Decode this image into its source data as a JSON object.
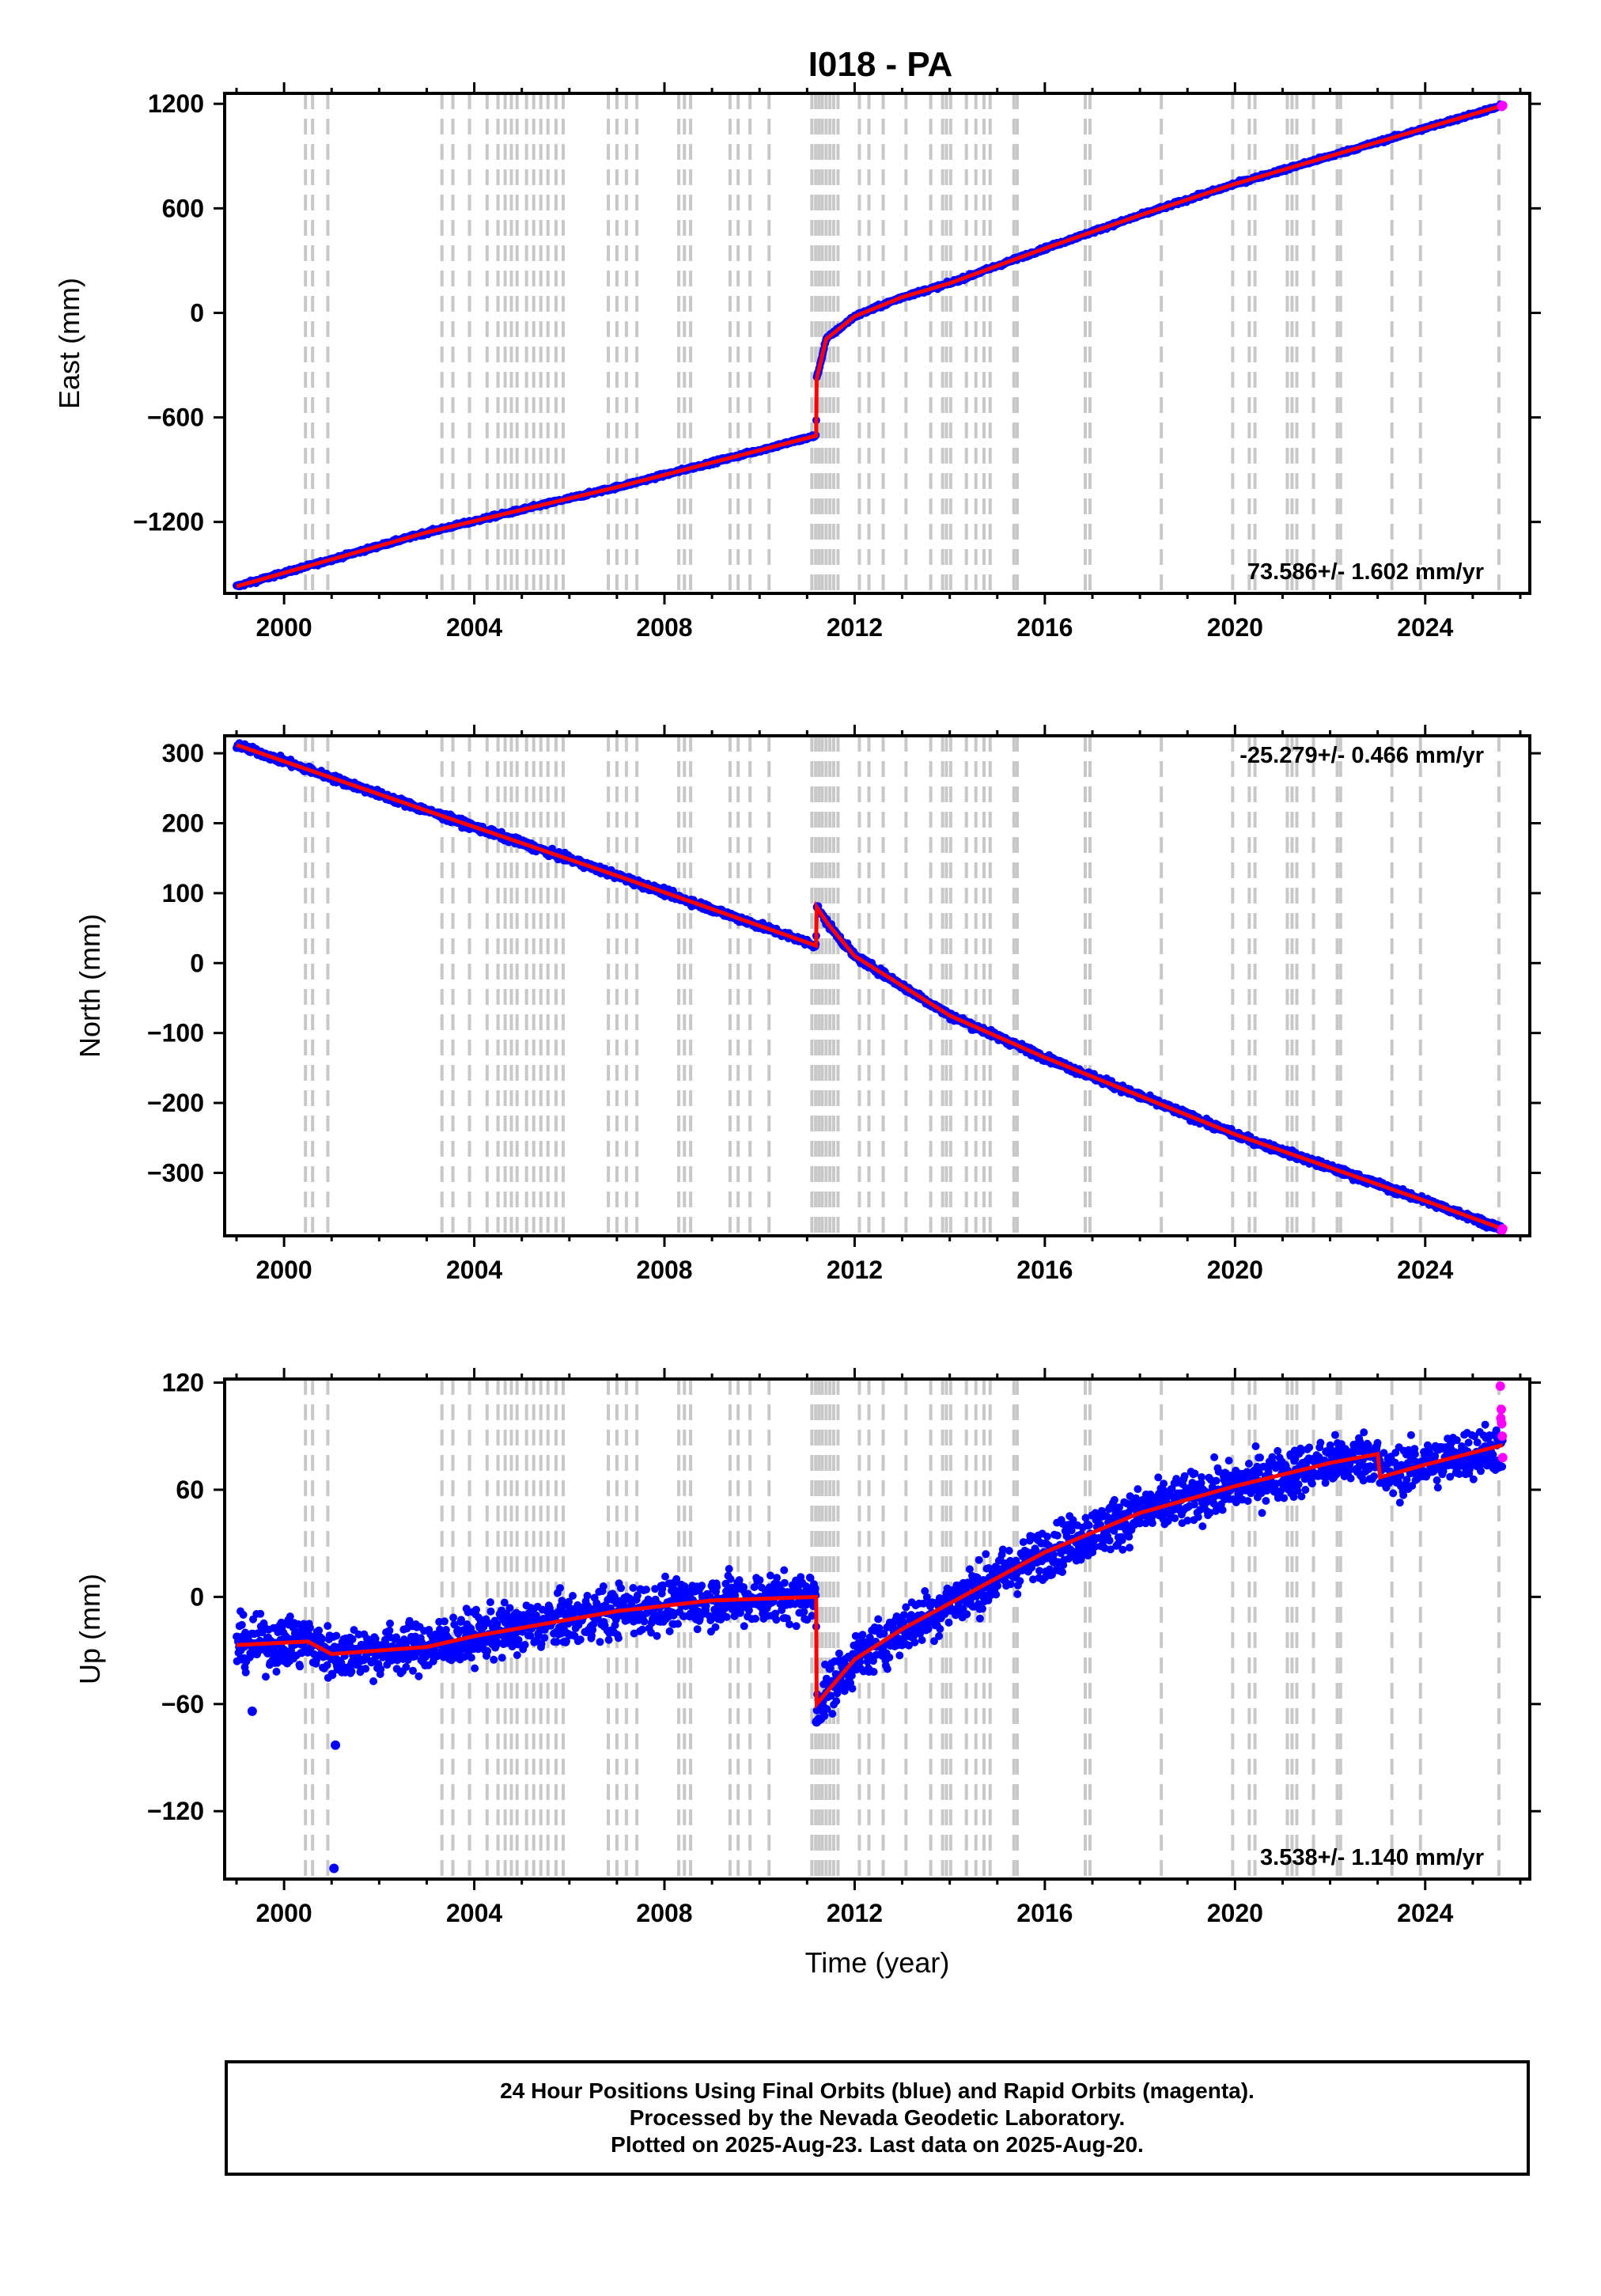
{
  "title": "I018 - PA",
  "footer": {
    "line1": "24 Hour Positions Using Final Orbits (blue) and Rapid Orbits (magenta).",
    "line2": "Processed by the Nevada Geodetic Laboratory.",
    "line3": "Plotted on 2025-Aug-23. Last data on 2025-Aug-20."
  },
  "colors": {
    "final_orbits": "#0000ff",
    "rapid_orbits": "#ff00ff",
    "model": "#ff0000",
    "event_lines": "#c8c8c8"
  },
  "chart_data": [
    {
      "type": "scatter",
      "ylabel": "East (mm)",
      "xlabel": "",
      "xlim": [
        1998.75,
        2026.2
      ],
      "ylim": [
        -1610,
        1260
      ],
      "xticks": [
        2000,
        2004,
        2008,
        2012,
        2016,
        2020,
        2024
      ],
      "yticks": [
        -1200,
        -600,
        0,
        600,
        1200
      ],
      "ytick_labels": [
        "−1200",
        "−600",
        "0",
        "600",
        "1200"
      ],
      "annotation": "73.586+/- 1.602 mm/yr",
      "annotation_position": "bottom-right",
      "noise": 5,
      "x": [
        1999.0,
        2003.0,
        2007.0,
        2011.19,
        2011.2,
        2011.4,
        2012.0,
        2013.0,
        2014.0,
        2016.0,
        2018.0,
        2020.0,
        2022.0,
        2024.0,
        2025.63
      ],
      "y": [
        -1570,
        -1260,
        -1000,
        -705,
        -380,
        -150,
        -20,
        90,
        170,
        370,
        560,
        740,
        900,
        1060,
        1190
      ]
    },
    {
      "type": "scatter",
      "ylabel": "North (mm)",
      "xlabel": "",
      "xlim": [
        1998.75,
        2026.2
      ],
      "ylim": [
        -390,
        325
      ],
      "xticks": [
        2000,
        2004,
        2008,
        2012,
        2016,
        2020,
        2024
      ],
      "yticks": [
        -300,
        -200,
        -100,
        0,
        100,
        200,
        300
      ],
      "ytick_labels": [
        "−300",
        "−200",
        "−100",
        "0",
        "100",
        "200",
        "300"
      ],
      "annotation": "-25.279+/- 0.466 mm/yr",
      "annotation_position": "top-right",
      "noise": 2.5,
      "x": [
        1999.0,
        2003.0,
        2007.0,
        2011.19,
        2011.2,
        2011.45,
        2012.0,
        2014.0,
        2016.0,
        2020.0,
        2024.0,
        2025.63
      ],
      "y": [
        312,
        218,
        125,
        25,
        80,
        55,
        10,
        -75,
        -135,
        -245,
        -340,
        -380
      ]
    },
    {
      "type": "scatter",
      "ylabel": "Up (mm)",
      "xlabel": "Time (year)",
      "xlim": [
        1998.75,
        2026.2
      ],
      "ylim": [
        -158,
        122
      ],
      "xticks": [
        2000,
        2004,
        2008,
        2012,
        2016,
        2020,
        2024
      ],
      "yticks": [
        -120,
        -60,
        0,
        60,
        120
      ],
      "ytick_labels": [
        "−120",
        "−60",
        "0",
        "60",
        "120"
      ],
      "annotation": "3.538+/- 1.140 mm/yr",
      "annotation_position": "bottom-right",
      "noise": 7,
      "outliers": [
        [
          1999.33,
          -64
        ],
        [
          2001.08,
          -83
        ],
        [
          2001.05,
          -152
        ],
        [
          2011.2,
          -70
        ]
      ],
      "rapid_points": [
        [
          2025.58,
          118
        ],
        [
          2025.6,
          105
        ],
        [
          2025.61,
          97
        ],
        [
          2025.62,
          90
        ],
        [
          2025.63,
          78
        ],
        [
          2025.59,
          100
        ]
      ],
      "x": [
        1999.0,
        2000.5,
        2001.0,
        2002.0,
        2003.0,
        2004.0,
        2005.5,
        2007.0,
        2009.0,
        2011.19,
        2011.2,
        2012.0,
        2013.0,
        2016.0,
        2018.0,
        2020.0,
        2022.0,
        2023.0,
        2023.05,
        2024.0,
        2025.63
      ],
      "y": [
        -27,
        -25,
        -32,
        -30,
        -28,
        -22,
        -15,
        -8,
        -2,
        0,
        -60,
        -35,
        -18,
        25,
        47,
        62,
        75,
        80,
        67,
        74,
        85
      ]
    }
  ],
  "event_lines": [
    2000.45,
    2000.6,
    2000.92,
    2003.32,
    2003.55,
    2003.9,
    2004.27,
    2004.5,
    2004.65,
    2004.78,
    2004.9,
    2005.1,
    2005.25,
    2005.4,
    2005.55,
    2005.72,
    2005.87,
    2006.82,
    2007.0,
    2007.2,
    2007.42,
    2008.3,
    2008.42,
    2008.55,
    2009.38,
    2009.55,
    2009.8,
    2010.2,
    2011.1,
    2011.18,
    2011.25,
    2011.32,
    2011.4,
    2011.48,
    2011.56,
    2011.65,
    2012.1,
    2012.3,
    2012.6,
    2013.08,
    2013.6,
    2013.85,
    2013.93,
    2014.02,
    2014.35,
    2014.55,
    2014.72,
    2014.85,
    2015.35,
    2015.42,
    2016.85,
    2016.95,
    2018.45,
    2019.95,
    2020.3,
    2020.42,
    2021.1,
    2021.2,
    2021.3,
    2021.65,
    2022.15,
    2022.22,
    2023.3,
    2023.9,
    2025.55
  ]
}
